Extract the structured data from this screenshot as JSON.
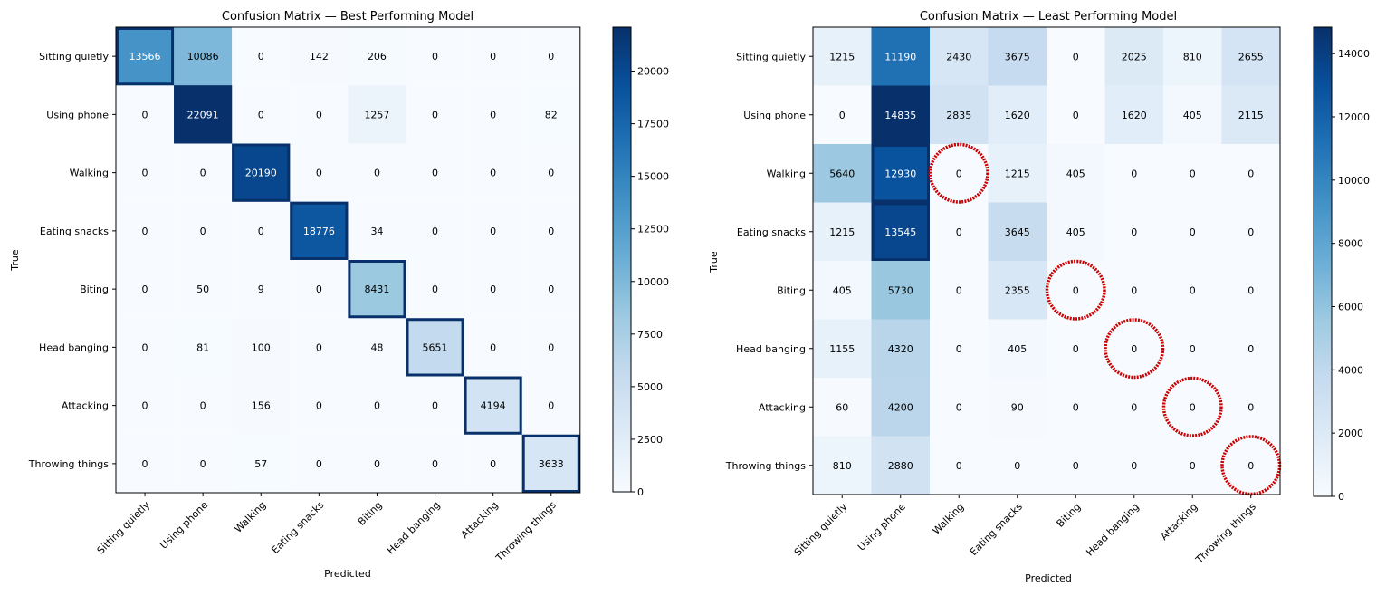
{
  "chart_data": [
    {
      "type": "heatmap",
      "title": "Confusion Matrix — Best Performing Model",
      "xlabel": "Predicted",
      "ylabel": "True",
      "categories": [
        "Sitting quietly",
        "Using phone",
        "Walking",
        "Eating snacks",
        "Biting",
        "Head banging",
        "Attacking",
        "Throwing things"
      ],
      "matrix": [
        [
          13566,
          10086,
          0,
          142,
          206,
          0,
          0,
          0
        ],
        [
          0,
          22091,
          0,
          0,
          1257,
          0,
          0,
          82
        ],
        [
          0,
          0,
          20190,
          0,
          0,
          0,
          0,
          0
        ],
        [
          0,
          0,
          0,
          18776,
          34,
          0,
          0,
          0
        ],
        [
          0,
          50,
          9,
          0,
          8431,
          0,
          0,
          0
        ],
        [
          0,
          81,
          100,
          0,
          48,
          5651,
          0,
          0
        ],
        [
          0,
          0,
          156,
          0,
          0,
          0,
          4194,
          0
        ],
        [
          0,
          0,
          57,
          0,
          0,
          0,
          0,
          3633
        ]
      ],
      "colorbar": {
        "min": 0,
        "max": 22091,
        "ticks": [
          0,
          2500,
          5000,
          7500,
          10000,
          12500,
          15000,
          17500,
          20000
        ]
      },
      "highlighted_cells": [
        [
          0,
          0
        ],
        [
          1,
          1
        ],
        [
          2,
          2
        ],
        [
          3,
          3
        ],
        [
          4,
          4
        ],
        [
          5,
          5
        ],
        [
          6,
          6
        ],
        [
          7,
          7
        ]
      ],
      "circled_cells": []
    },
    {
      "type": "heatmap",
      "title": "Confusion Matrix — Least Performing Model",
      "xlabel": "Predicted",
      "ylabel": "True",
      "categories": [
        "Sitting quietly",
        "Using phone",
        "Walking",
        "Eating snacks",
        "Biting",
        "Head banging",
        "Attacking",
        "Throwing things"
      ],
      "matrix": [
        [
          1215,
          11190,
          2430,
          3675,
          0,
          2025,
          810,
          2655
        ],
        [
          0,
          14835,
          2835,
          1620,
          0,
          1620,
          405,
          2115
        ],
        [
          5640,
          12930,
          0,
          1215,
          405,
          0,
          0,
          0
        ],
        [
          1215,
          13545,
          0,
          3645,
          405,
          0,
          0,
          0
        ],
        [
          405,
          5730,
          0,
          2355,
          0,
          0,
          0,
          0
        ],
        [
          1155,
          4320,
          0,
          405,
          0,
          0,
          0,
          0
        ],
        [
          60,
          4200,
          0,
          90,
          0,
          0,
          0,
          0
        ],
        [
          810,
          2880,
          0,
          0,
          0,
          0,
          0,
          0
        ]
      ],
      "colorbar": {
        "min": 0,
        "max": 14835,
        "ticks": [
          0,
          2000,
          4000,
          6000,
          8000,
          10000,
          12000,
          14000
        ]
      },
      "highlighted_cells": [
        [
          1,
          1
        ],
        [
          2,
          1
        ],
        [
          3,
          1
        ]
      ],
      "circled_cells": [
        [
          2,
          2
        ],
        [
          4,
          4
        ],
        [
          5,
          5
        ],
        [
          6,
          6
        ],
        [
          7,
          7
        ]
      ]
    }
  ],
  "colors": {
    "annotation_color": "#cc0000",
    "highlight_border": "#08306b",
    "text_dark": "#000000",
    "text_light": "#ffffff"
  }
}
